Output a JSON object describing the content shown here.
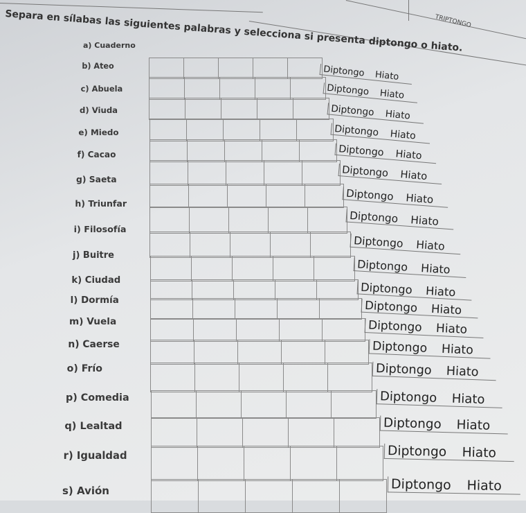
{
  "instruction": "Separa en sílabas las siguientes palabras y selecciona si presenta diptongo o hiato.",
  "header_label": "TRIPTONGO",
  "options": {
    "diptongo": "Diptongo",
    "hiato": "Hiato"
  },
  "items": [
    {
      "label": "a) Cuaderno"
    },
    {
      "label": "b) Ateo"
    },
    {
      "label": "c) Abuela"
    },
    {
      "label": "d) Viuda"
    },
    {
      "label": "e) Miedo"
    },
    {
      "label": "f) Cacao"
    },
    {
      "label": "g) Saeta"
    },
    {
      "label": "h) Triunfar"
    },
    {
      "label": "i) Filosofía"
    },
    {
      "label": "j) Buitre"
    },
    {
      "label": "k) Ciudad"
    },
    {
      "label": "l) Dormía"
    },
    {
      "label": "m) Vuela"
    },
    {
      "label": "n) Caerse"
    },
    {
      "label": "o) Frío"
    },
    {
      "label": "p) Comedia"
    },
    {
      "label": "q) Lealtad"
    },
    {
      "label": "r) Igualdad"
    },
    {
      "label": "s) Avión"
    }
  ]
}
